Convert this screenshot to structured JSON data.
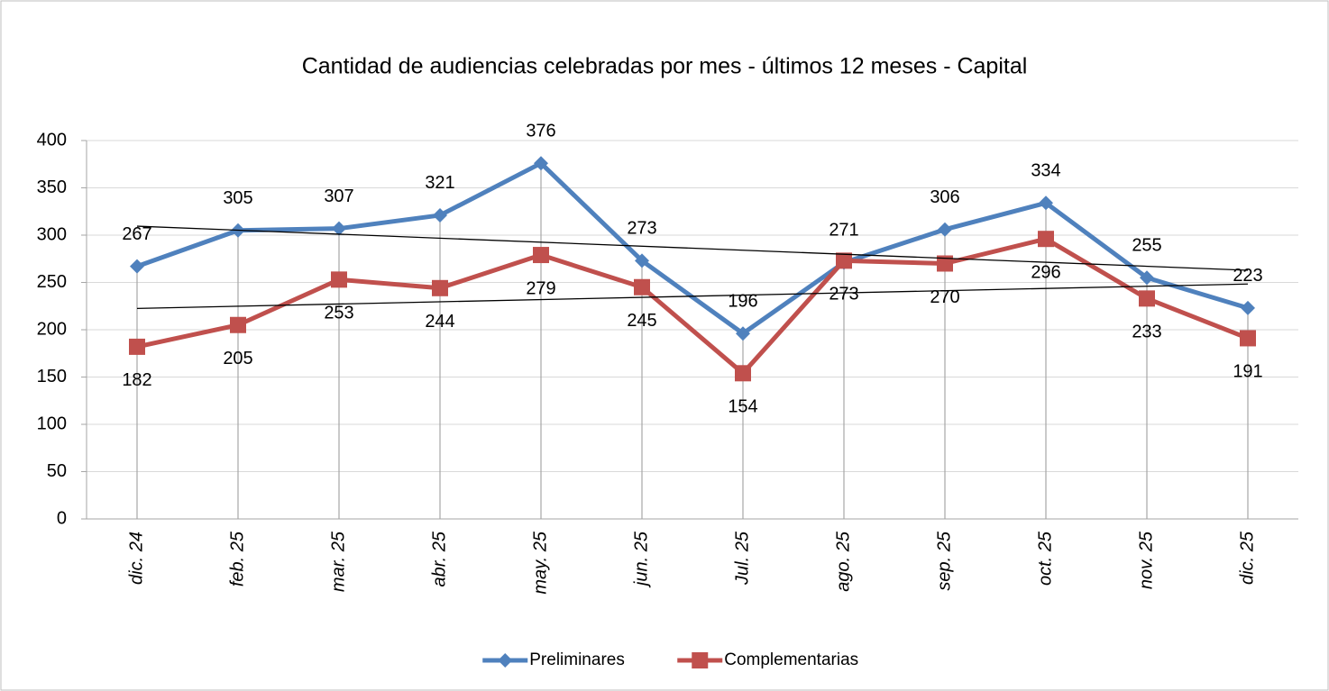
{
  "chart_data": {
    "type": "line",
    "title": "Cantidad de audiencias celebradas por mes - últimos 12 meses - Capital",
    "categories": [
      "dic. 24",
      "feb. 25",
      "mar. 25",
      "abr. 25",
      "may. 25",
      "jun. 25",
      "Jul. 25",
      "ago. 25",
      "sep. 25",
      "oct. 25",
      "nov. 25",
      "dic. 25"
    ],
    "series": [
      {
        "name": "Preliminares",
        "color": "#4f81bd",
        "marker": "diamond",
        "label_position": "above",
        "trendline": "linear",
        "values": [
          267,
          305,
          307,
          321,
          376,
          273,
          196,
          271,
          306,
          334,
          255,
          223
        ]
      },
      {
        "name": "Complementarias",
        "color": "#c0504d",
        "marker": "square",
        "label_position": "below",
        "trendline": "linear",
        "values": [
          182,
          205,
          253,
          244,
          279,
          245,
          154,
          273,
          270,
          296,
          233,
          191
        ]
      }
    ],
    "ylim": [
      0,
      400
    ],
    "yticks": [
      0,
      50,
      100,
      150,
      200,
      250,
      300,
      350,
      400
    ],
    "grid": true,
    "drop_lines": true,
    "legend": "bottom"
  }
}
